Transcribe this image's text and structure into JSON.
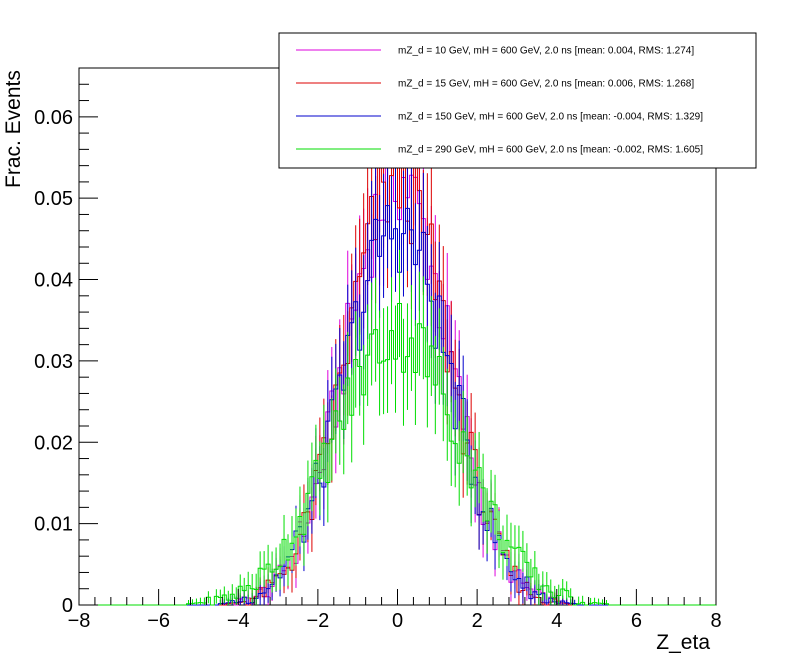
{
  "chart_data": {
    "type": "line",
    "title": "",
    "xlabel": "Z_eta",
    "ylabel": "Frac. Events",
    "xlim": [
      -8,
      8
    ],
    "ylim": [
      0,
      0.066
    ],
    "xticks": [
      -8,
      -6,
      -4,
      -2,
      0,
      2,
      4,
      6,
      8
    ],
    "yticks": [
      0,
      0.01,
      0.02,
      0.03,
      0.04,
      0.05,
      0.06
    ],
    "xtick_labels": [
      "−8",
      "−6",
      "−4",
      "−2",
      "0",
      "2",
      "4",
      "6",
      "8"
    ],
    "ytick_labels": [
      "0",
      "0.01",
      "0.02",
      "0.03",
      "0.04",
      "0.05",
      "0.06"
    ],
    "bin_width": 0.1,
    "grid": false,
    "legend_position": "top-right",
    "series": [
      {
        "name": "mZ_d = 10 GeV, mH = 600 GeV, 2.0 ns [mean: 0.004, RMS: 1.274]",
        "color": "#dd00dd",
        "mean": 0.004,
        "rms": 1.274,
        "peak": 0.0525,
        "x": [
          -4.5,
          -4,
          -3.5,
          -3,
          -2.5,
          -2,
          -1.5,
          -1,
          -0.5,
          -0.25,
          0,
          0.25,
          0.5,
          1,
          1.5,
          2,
          2.5,
          3,
          3.5,
          4,
          4.5
        ],
        "y": [
          0.0005,
          0.0015,
          0.003,
          0.0065,
          0.0105,
          0.0175,
          0.027,
          0.038,
          0.047,
          0.05,
          0.0525,
          0.05,
          0.047,
          0.038,
          0.027,
          0.0175,
          0.0105,
          0.0065,
          0.003,
          0.0015,
          0.0005
        ]
      },
      {
        "name": "mZ_d = 15 GeV, mH = 600 GeV, 2.0 ns [mean: 0.006, RMS: 1.268]",
        "color": "#dd0000",
        "mean": 0.006,
        "rms": 1.268,
        "peak": 0.052,
        "x": [
          -4.5,
          -4,
          -3.5,
          -3,
          -2.5,
          -2,
          -1.5,
          -1,
          -0.5,
          -0.25,
          0,
          0.25,
          0.5,
          1,
          1.5,
          2,
          2.5,
          3,
          3.5,
          4,
          4.5
        ],
        "y": [
          0.0005,
          0.0015,
          0.003,
          0.0065,
          0.0105,
          0.018,
          0.0275,
          0.0385,
          0.0465,
          0.049,
          0.052,
          0.049,
          0.0465,
          0.0385,
          0.0275,
          0.018,
          0.0105,
          0.0065,
          0.003,
          0.0015,
          0.0005
        ]
      },
      {
        "name": "mZ_d = 150 GeV, mH = 600 GeV, 2.0 ns [mean: -0.004, RMS: 1.329]",
        "color": "#0000cc",
        "mean": -0.004,
        "rms": 1.329,
        "peak": 0.0465,
        "x": [
          -4.5,
          -4,
          -3.5,
          -3,
          -2.5,
          -2,
          -1.5,
          -1,
          -0.5,
          -0.25,
          0,
          0.25,
          0.5,
          1,
          1.5,
          2,
          2.5,
          3,
          3.5,
          4,
          4.5
        ],
        "y": [
          0.0008,
          0.002,
          0.004,
          0.0075,
          0.0125,
          0.0195,
          0.029,
          0.038,
          0.0445,
          0.0465,
          0.046,
          0.0465,
          0.0445,
          0.038,
          0.029,
          0.0195,
          0.0125,
          0.0075,
          0.004,
          0.002,
          0.0008
        ]
      },
      {
        "name": "mZ_d = 290 GeV, mH = 600 GeV, 2.0 ns [mean: -0.002, RMS: 1.605]",
        "color": "#00dd00",
        "mean": -0.002,
        "rms": 1.605,
        "peak": 0.0335,
        "x": [
          -5,
          -4.5,
          -4,
          -3.5,
          -3,
          -2.5,
          -2,
          -1.5,
          -1,
          -0.5,
          0,
          0.5,
          1,
          1.5,
          2,
          2.5,
          3,
          3.5,
          4,
          4.5,
          5
        ],
        "y": [
          0.001,
          0.0025,
          0.0045,
          0.008,
          0.0125,
          0.0175,
          0.0225,
          0.0275,
          0.031,
          0.0335,
          0.0335,
          0.0335,
          0.031,
          0.0275,
          0.0225,
          0.0175,
          0.0125,
          0.008,
          0.0045,
          0.0025,
          0.001
        ]
      }
    ]
  }
}
